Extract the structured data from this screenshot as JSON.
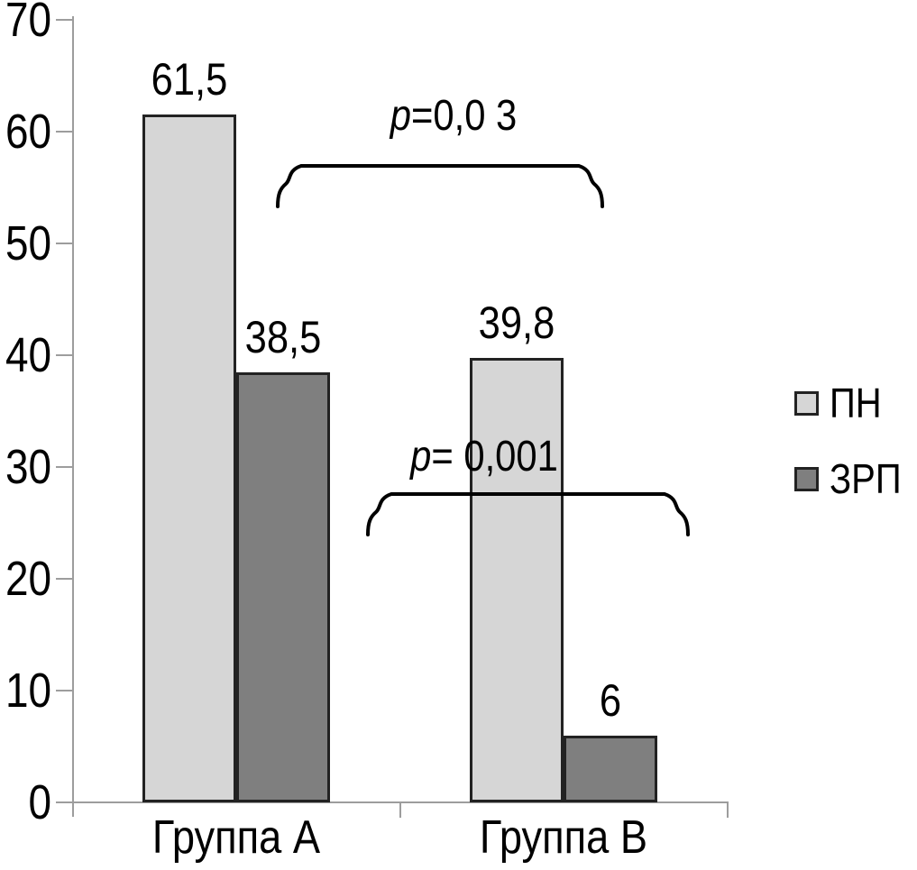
{
  "chart_data": {
    "type": "bar",
    "title": "",
    "xlabel": "",
    "ylabel": "",
    "categories": [
      "Группа А",
      "Группа В"
    ],
    "series": [
      {
        "name": "ПН",
        "values": [
          61.5,
          39.8
        ],
        "labels": [
          "61,5",
          "39,8"
        ],
        "color": "#d6d6d6"
      },
      {
        "name": "ЗРП",
        "values": [
          38.5,
          6
        ],
        "labels": [
          "38,5",
          "6"
        ],
        "color": "#7f7f7f"
      }
    ],
    "ylim": [
      0,
      70
    ],
    "yticks": [
      0,
      10,
      20,
      30,
      40,
      50,
      60,
      70
    ],
    "grid": false,
    "legend_position": "right",
    "annotations": [
      {
        "label": "p=0,0 3",
        "connects": [
          "Группа А",
          "Группа В"
        ]
      },
      {
        "label": "p= 0,001",
        "connects": [
          "Группа В: ПН",
          "Группа В: ЗРП"
        ]
      }
    ]
  },
  "colors": {
    "bar_light": "#d6d6d6",
    "bar_dark": "#7f7f7f",
    "bar_border": "#222222",
    "axis": "#9d9d9d",
    "text": "#000000",
    "annotation": "#000000"
  }
}
